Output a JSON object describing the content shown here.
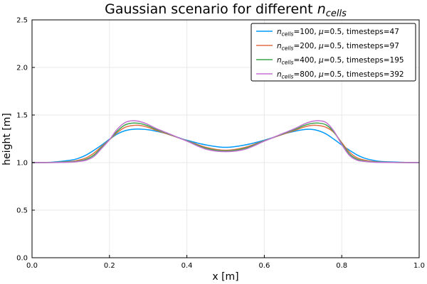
{
  "chart_data": {
    "type": "line",
    "title": "Gaussian scenario for different n_cells",
    "title_parts": {
      "base": "Gaussian scenario for different ",
      "var": "n",
      "sub": "cells"
    },
    "xlabel": "x [m]",
    "ylabel": "height [m]",
    "xlim": [
      0.0,
      1.0
    ],
    "ylim": [
      0.0,
      2.5
    ],
    "x_ticks": [
      "0.0",
      "0.2",
      "0.4",
      "0.6",
      "0.8",
      "1.0"
    ],
    "y_ticks": [
      "0.0",
      "0.5",
      "1.0",
      "1.5",
      "2.0",
      "2.5"
    ],
    "grid": true,
    "legend_position": "top-right",
    "x": [
      0.0,
      0.05,
      0.1,
      0.12,
      0.14,
      0.16,
      0.18,
      0.2,
      0.22,
      0.24,
      0.26,
      0.28,
      0.3,
      0.32,
      0.35,
      0.4,
      0.45,
      0.5,
      0.55,
      0.6,
      0.65,
      0.68,
      0.7,
      0.72,
      0.74,
      0.76,
      0.78,
      0.8,
      0.82,
      0.84,
      0.86,
      0.88,
      0.9,
      0.95,
      1.0
    ],
    "series": [
      {
        "name": "n_cells=100, μ=0.5, timesteps=47",
        "values": [
          1.0,
          1.004,
          1.025,
          1.045,
          1.08,
          1.13,
          1.185,
          1.245,
          1.3,
          1.335,
          1.35,
          1.352,
          1.345,
          1.33,
          1.3,
          1.235,
          1.185,
          1.16,
          1.185,
          1.235,
          1.3,
          1.33,
          1.345,
          1.35,
          1.335,
          1.3,
          1.245,
          1.185,
          1.13,
          1.08,
          1.045,
          1.025,
          1.012,
          1.004,
          1.0
        ]
      },
      {
        "name": "n_cells=200, μ=0.5, timesteps=97",
        "values": [
          1.0,
          1.002,
          1.012,
          1.025,
          1.05,
          1.1,
          1.17,
          1.24,
          1.315,
          1.37,
          1.39,
          1.39,
          1.37,
          1.34,
          1.3,
          1.23,
          1.16,
          1.13,
          1.16,
          1.23,
          1.3,
          1.34,
          1.37,
          1.39,
          1.39,
          1.37,
          1.315,
          1.21,
          1.11,
          1.05,
          1.025,
          1.012,
          1.006,
          1.002,
          1.0
        ]
      },
      {
        "name": "n_cells=400, μ=0.5, timesteps=195",
        "values": [
          1.0,
          1.001,
          1.008,
          1.016,
          1.035,
          1.08,
          1.16,
          1.24,
          1.33,
          1.395,
          1.415,
          1.41,
          1.385,
          1.35,
          1.305,
          1.228,
          1.15,
          1.122,
          1.15,
          1.228,
          1.305,
          1.35,
          1.385,
          1.41,
          1.415,
          1.395,
          1.32,
          1.2,
          1.09,
          1.035,
          1.016,
          1.008,
          1.004,
          1.001,
          1.0
        ]
      },
      {
        "name": "n_cells=800, μ=0.5, timesteps=392",
        "values": [
          1.0,
          1.0,
          1.005,
          1.012,
          1.025,
          1.065,
          1.15,
          1.24,
          1.35,
          1.42,
          1.44,
          1.43,
          1.4,
          1.36,
          1.31,
          1.225,
          1.14,
          1.115,
          1.14,
          1.225,
          1.31,
          1.36,
          1.4,
          1.43,
          1.44,
          1.42,
          1.33,
          1.19,
          1.075,
          1.025,
          1.012,
          1.005,
          1.002,
          1.0,
          1.0
        ]
      }
    ],
    "legend_labels": [
      {
        "var": "n",
        "sub": "cells",
        "rest_prefix": "=100, ",
        "mu": "μ",
        "rest": "=0.5, timesteps=47"
      },
      {
        "var": "n",
        "sub": "cells",
        "rest_prefix": "=200, ",
        "mu": "μ",
        "rest": "=0.5, timesteps=97"
      },
      {
        "var": "n",
        "sub": "cells",
        "rest_prefix": "=400, ",
        "mu": "μ",
        "rest": "=0.5, timesteps=195"
      },
      {
        "var": "n",
        "sub": "cells",
        "rest_prefix": "=800, ",
        "mu": "μ",
        "rest": "=0.5, timesteps=392"
      }
    ],
    "colors": [
      "#009af9",
      "#e26f46",
      "#3da44d",
      "#c271d2"
    ]
  }
}
